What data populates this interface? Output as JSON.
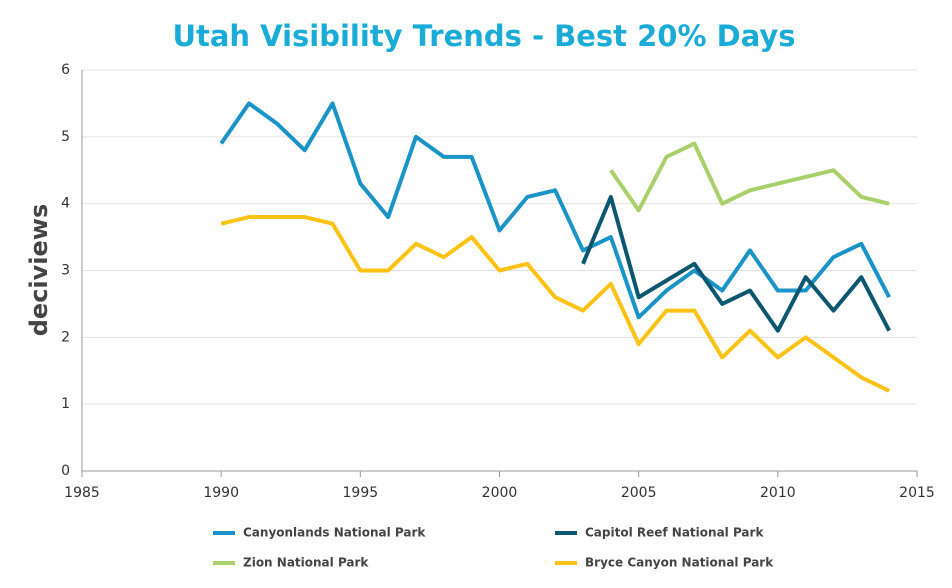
{
  "chart_data": {
    "type": "line",
    "title": "Utah Visibility Trends - Best 20% Days",
    "y_label": "deciviews",
    "x": [
      1990,
      1991,
      1992,
      1993,
      1994,
      1995,
      1996,
      1997,
      1998,
      1999,
      2000,
      2001,
      2002,
      2003,
      2004,
      2005,
      2006,
      2007,
      2008,
      2009,
      2010,
      2011,
      2012,
      2013,
      2014
    ],
    "xlim": [
      1985,
      2015
    ],
    "xticks": [
      1985,
      1990,
      1995,
      2000,
      2005,
      2010,
      2015
    ],
    "ylim": [
      0,
      6
    ],
    "yticks": [
      0,
      1,
      2,
      3,
      4,
      5,
      6
    ],
    "grid": true,
    "legend": "bottom",
    "series": [
      {
        "name": "Canyonlands National Park",
        "color": "#1a93c7",
        "values": [
          4.9,
          5.5,
          5.2,
          4.8,
          5.5,
          4.3,
          3.8,
          5.0,
          4.7,
          4.7,
          3.6,
          4.1,
          4.2,
          3.3,
          3.5,
          2.3,
          2.7,
          3.0,
          2.7,
          3.3,
          2.7,
          2.7,
          3.2,
          3.4,
          2.6
        ]
      },
      {
        "name": "Capitol Reef National Park",
        "color": "#0d5670",
        "values": [
          null,
          null,
          null,
          null,
          null,
          null,
          null,
          null,
          null,
          null,
          null,
          null,
          null,
          3.1,
          4.1,
          2.6,
          2.85,
          3.1,
          2.5,
          2.7,
          2.1,
          2.9,
          2.4,
          2.9,
          2.1
        ]
      },
      {
        "name": "Zion National Park",
        "color": "#a9d06b",
        "values": [
          null,
          null,
          null,
          null,
          null,
          null,
          null,
          null,
          null,
          null,
          null,
          null,
          null,
          null,
          4.5,
          3.9,
          4.7,
          4.9,
          4.0,
          4.2,
          4.3,
          4.4,
          4.5,
          4.1,
          4.0
        ]
      },
      {
        "name": "Bryce Canyon National Park",
        "color": "#fcc316",
        "values": [
          3.7,
          3.8,
          3.8,
          3.8,
          3.7,
          3.0,
          3.0,
          3.4,
          3.2,
          3.5,
          3.0,
          3.1,
          2.6,
          2.4,
          2.8,
          1.9,
          2.4,
          2.4,
          1.7,
          2.1,
          1.7,
          2.0,
          1.7,
          1.4,
          1.2
        ]
      }
    ]
  }
}
